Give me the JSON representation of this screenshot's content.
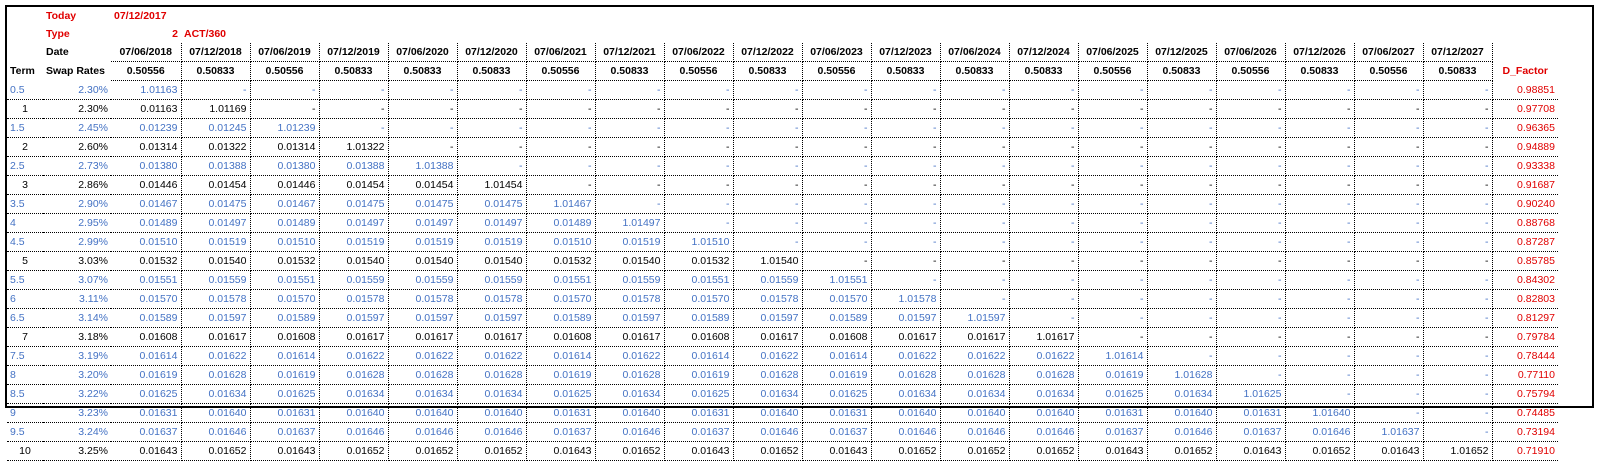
{
  "header": {
    "today_label": "Today",
    "today_value": "07/12/2017",
    "type_label": "Type",
    "type_value": "2",
    "type_basis": "ACT/360",
    "date_label": "Date"
  },
  "columns": {
    "dates": [
      "07/06/2018",
      "07/12/2018",
      "07/06/2019",
      "07/12/2019",
      "07/06/2020",
      "07/12/2020",
      "07/06/2021",
      "07/12/2021",
      "07/06/2022",
      "07/12/2022",
      "07/06/2023",
      "07/12/2023",
      "07/06/2024",
      "07/12/2024",
      "07/06/2025",
      "07/12/2025",
      "07/06/2026",
      "07/12/2026",
      "07/06/2027",
      "07/12/2027"
    ],
    "fractions": [
      "0.50556",
      "0.50833",
      "0.50556",
      "0.50833",
      "0.50833",
      "0.50833",
      "0.50556",
      "0.50833",
      "0.50556",
      "0.50833",
      "0.50556",
      "0.50833",
      "0.50833",
      "0.50833",
      "0.50556",
      "0.50833",
      "0.50556",
      "0.50833",
      "0.50556",
      "0.50833"
    ],
    "term_header": "Term",
    "swap_header": "Swap Rates",
    "dfactor_header": "D_Factor"
  },
  "rows": [
    {
      "term": "0.5",
      "rate": "2.30%",
      "half": true,
      "values": [
        "1.01163"
      ],
      "dfactor": "0.98851"
    },
    {
      "term": "1",
      "rate": "2.30%",
      "half": false,
      "values": [
        "0.01163",
        "1.01169"
      ],
      "dfactor": "0.97708"
    },
    {
      "term": "1.5",
      "rate": "2.45%",
      "half": true,
      "values": [
        "0.01239",
        "0.01245",
        "1.01239"
      ],
      "dfactor": "0.96365"
    },
    {
      "term": "2",
      "rate": "2.60%",
      "half": false,
      "values": [
        "0.01314",
        "0.01322",
        "0.01314",
        "1.01322"
      ],
      "dfactor": "0.94889"
    },
    {
      "term": "2.5",
      "rate": "2.73%",
      "half": true,
      "values": [
        "0.01380",
        "0.01388",
        "0.01380",
        "0.01388",
        "1.01388"
      ],
      "dfactor": "0.93338"
    },
    {
      "term": "3",
      "rate": "2.86%",
      "half": false,
      "values": [
        "0.01446",
        "0.01454",
        "0.01446",
        "0.01454",
        "0.01454",
        "1.01454"
      ],
      "dfactor": "0.91687"
    },
    {
      "term": "3.5",
      "rate": "2.90%",
      "half": true,
      "values": [
        "0.01467",
        "0.01475",
        "0.01467",
        "0.01475",
        "0.01475",
        "0.01475",
        "1.01467"
      ],
      "dfactor": "0.90240"
    },
    {
      "term": "4",
      "rate": "2.95%",
      "half": true,
      "values": [
        "0.01489",
        "0.01497",
        "0.01489",
        "0.01497",
        "0.01497",
        "0.01497",
        "0.01489",
        "1.01497"
      ],
      "dfactor": "0.88768"
    },
    {
      "term": "4.5",
      "rate": "2.99%",
      "half": true,
      "values": [
        "0.01510",
        "0.01519",
        "0.01510",
        "0.01519",
        "0.01519",
        "0.01519",
        "0.01510",
        "0.01519",
        "1.01510"
      ],
      "dfactor": "0.87287"
    },
    {
      "term": "5",
      "rate": "3.03%",
      "half": false,
      "values": [
        "0.01532",
        "0.01540",
        "0.01532",
        "0.01540",
        "0.01540",
        "0.01540",
        "0.01532",
        "0.01540",
        "0.01532",
        "1.01540"
      ],
      "dfactor": "0.85785"
    },
    {
      "term": "5.5",
      "rate": "3.07%",
      "half": true,
      "values": [
        "0.01551",
        "0.01559",
        "0.01551",
        "0.01559",
        "0.01559",
        "0.01559",
        "0.01551",
        "0.01559",
        "0.01551",
        "0.01559",
        "1.01551"
      ],
      "dfactor": "0.84302"
    },
    {
      "term": "6",
      "rate": "3.11%",
      "half": true,
      "values": [
        "0.01570",
        "0.01578",
        "0.01570",
        "0.01578",
        "0.01578",
        "0.01578",
        "0.01570",
        "0.01578",
        "0.01570",
        "0.01578",
        "0.01570",
        "1.01578"
      ],
      "dfactor": "0.82803"
    },
    {
      "term": "6.5",
      "rate": "3.14%",
      "half": true,
      "values": [
        "0.01589",
        "0.01597",
        "0.01589",
        "0.01597",
        "0.01597",
        "0.01597",
        "0.01589",
        "0.01597",
        "0.01589",
        "0.01597",
        "0.01589",
        "0.01597",
        "1.01597"
      ],
      "dfactor": "0.81297"
    },
    {
      "term": "7",
      "rate": "3.18%",
      "half": false,
      "values": [
        "0.01608",
        "0.01617",
        "0.01608",
        "0.01617",
        "0.01617",
        "0.01617",
        "0.01608",
        "0.01617",
        "0.01608",
        "0.01617",
        "0.01608",
        "0.01617",
        "0.01617",
        "1.01617"
      ],
      "dfactor": "0.79784"
    },
    {
      "term": "7.5",
      "rate": "3.19%",
      "half": true,
      "values": [
        "0.01614",
        "0.01622",
        "0.01614",
        "0.01622",
        "0.01622",
        "0.01622",
        "0.01614",
        "0.01622",
        "0.01614",
        "0.01622",
        "0.01614",
        "0.01622",
        "0.01622",
        "0.01622",
        "1.01614"
      ],
      "dfactor": "0.78444"
    },
    {
      "term": "8",
      "rate": "3.20%",
      "half": true,
      "values": [
        "0.01619",
        "0.01628",
        "0.01619",
        "0.01628",
        "0.01628",
        "0.01628",
        "0.01619",
        "0.01628",
        "0.01619",
        "0.01628",
        "0.01619",
        "0.01628",
        "0.01628",
        "0.01628",
        "0.01619",
        "1.01628"
      ],
      "dfactor": "0.77110"
    },
    {
      "term": "8.5",
      "rate": "3.22%",
      "half": true,
      "values": [
        "0.01625",
        "0.01634",
        "0.01625",
        "0.01634",
        "0.01634",
        "0.01634",
        "0.01625",
        "0.01634",
        "0.01625",
        "0.01634",
        "0.01625",
        "0.01634",
        "0.01634",
        "0.01634",
        "0.01625",
        "0.01634",
        "1.01625"
      ],
      "dfactor": "0.75794"
    },
    {
      "term": "9",
      "rate": "3.23%",
      "half": true,
      "values": [
        "0.01631",
        "0.01640",
        "0.01631",
        "0.01640",
        "0.01640",
        "0.01640",
        "0.01631",
        "0.01640",
        "0.01631",
        "0.01640",
        "0.01631",
        "0.01640",
        "0.01640",
        "0.01640",
        "0.01631",
        "0.01640",
        "0.01631",
        "1.01640"
      ],
      "dfactor": "0.74485"
    },
    {
      "term": "9.5",
      "rate": "3.24%",
      "half": true,
      "values": [
        "0.01637",
        "0.01646",
        "0.01637",
        "0.01646",
        "0.01646",
        "0.01646",
        "0.01637",
        "0.01646",
        "0.01637",
        "0.01646",
        "0.01637",
        "0.01646",
        "0.01646",
        "0.01646",
        "0.01637",
        "0.01646",
        "0.01637",
        "0.01646",
        "1.01637"
      ],
      "dfactor": "0.73194"
    },
    {
      "term": "10",
      "rate": "3.25%",
      "half": false,
      "values": [
        "0.01643",
        "0.01652",
        "0.01643",
        "0.01652",
        "0.01652",
        "0.01652",
        "0.01643",
        "0.01652",
        "0.01643",
        "0.01652",
        "0.01643",
        "0.01652",
        "0.01652",
        "0.01652",
        "0.01643",
        "0.01652",
        "0.01643",
        "0.01652",
        "0.01643",
        "1.01652"
      ],
      "dfactor": "0.71910"
    }
  ],
  "empty_marker": "-"
}
